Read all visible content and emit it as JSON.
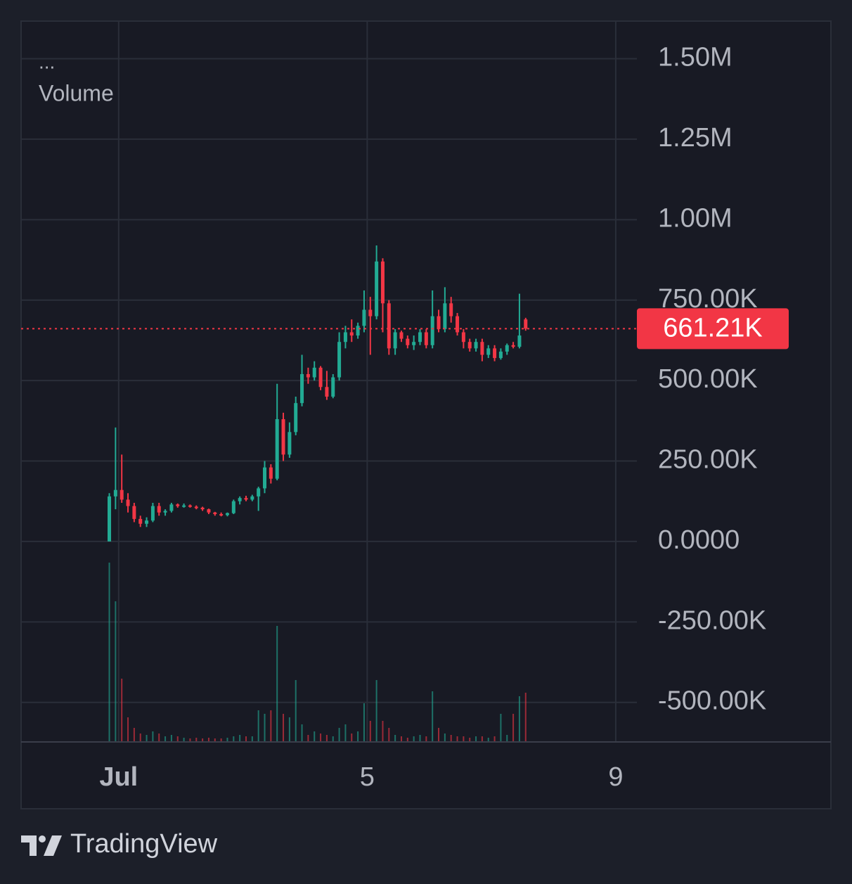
{
  "chart_data": {
    "type": "candlestick",
    "legend_menu": "...",
    "legend_label": "Volume",
    "brand": "TradingView",
    "up_color": "#22ab94",
    "down_color": "#f23645",
    "grid": true,
    "xlim": [
      -1.57,
      8.34
    ],
    "xticks": [
      {
        "value": 0,
        "label": "Jul"
      },
      {
        "value": 4,
        "label": "5"
      },
      {
        "value": 8,
        "label": "9"
      }
    ],
    "ylim": [
      -623000,
      1617000
    ],
    "yticks": [
      {
        "value": 1500000,
        "label": "1.50M"
      },
      {
        "value": 1250000,
        "label": "1.25M"
      },
      {
        "value": 1000000,
        "label": "1.00M"
      },
      {
        "value": 750000,
        "label": "750.00K"
      },
      {
        "value": 500000,
        "label": "500.00K"
      },
      {
        "value": 250000,
        "label": "250.00K"
      },
      {
        "value": 0,
        "label": "0.0000"
      },
      {
        "value": -250000,
        "label": "-250.00K"
      },
      {
        "value": -500000,
        "label": "-500.00K"
      }
    ],
    "last_price": {
      "value": 661210,
      "label": "661.21K"
    },
    "volume_ylim": [
      0,
      300
    ],
    "x": [
      -0.15,
      -0.05,
      0.05,
      0.15,
      0.25,
      0.35,
      0.45,
      0.55,
      0.65,
      0.75,
      0.85,
      0.95,
      1.05,
      1.15,
      1.25,
      1.35,
      1.45,
      1.55,
      1.65,
      1.75,
      1.85,
      1.95,
      2.05,
      2.15,
      2.25,
      2.35,
      2.45,
      2.55,
      2.65,
      2.75,
      2.85,
      2.95,
      3.05,
      3.15,
      3.25,
      3.35,
      3.45,
      3.55,
      3.65,
      3.75,
      3.85,
      3.95,
      4.05,
      4.15,
      4.25,
      4.35,
      4.45,
      4.55,
      4.65,
      4.75,
      4.85,
      4.95,
      5.05,
      5.15,
      5.25,
      5.35,
      5.45,
      5.55,
      5.65,
      5.75,
      5.85,
      5.95,
      6.05,
      6.15,
      6.25,
      6.35,
      6.45,
      6.55
    ],
    "open": [
      0,
      140000,
      160000,
      130000,
      110000,
      70000,
      55000,
      65000,
      110000,
      90000,
      95000,
      115000,
      110000,
      112000,
      108000,
      105000,
      100000,
      90000,
      85000,
      82000,
      88000,
      125000,
      135000,
      130000,
      140000,
      165000,
      230000,
      195000,
      380000,
      270000,
      340000,
      430000,
      520000,
      510000,
      540000,
      480000,
      450000,
      510000,
      620000,
      650000,
      640000,
      670000,
      720000,
      700000,
      870000,
      740000,
      600000,
      650000,
      630000,
      610000,
      620000,
      650000,
      610000,
      700000,
      660000,
      740000,
      700000,
      650000,
      620000,
      600000,
      620000,
      580000,
      600000,
      570000,
      590000,
      610000,
      605000,
      690000
    ],
    "high": [
      150000,
      354000,
      270000,
      150000,
      120000,
      80000,
      75000,
      120000,
      120000,
      100000,
      120000,
      118000,
      118000,
      115000,
      112000,
      108000,
      102000,
      92000,
      90000,
      90000,
      130000,
      140000,
      142000,
      145000,
      170000,
      250000,
      240000,
      490000,
      400000,
      370000,
      450000,
      580000,
      540000,
      560000,
      545000,
      530000,
      520000,
      650000,
      670000,
      690000,
      680000,
      780000,
      760000,
      920000,
      880000,
      750000,
      660000,
      655000,
      640000,
      640000,
      660000,
      660000,
      780000,
      720000,
      790000,
      760000,
      710000,
      660000,
      630000,
      630000,
      630000,
      610000,
      610000,
      600000,
      615000,
      620000,
      770000,
      695000
    ],
    "low": [
      0,
      100000,
      120000,
      90000,
      60000,
      45000,
      45000,
      60000,
      80000,
      80000,
      90000,
      105000,
      105000,
      105000,
      100000,
      95000,
      85000,
      80000,
      78000,
      78000,
      85000,
      115000,
      125000,
      125000,
      95000,
      150000,
      180000,
      190000,
      250000,
      260000,
      330000,
      420000,
      490000,
      500000,
      470000,
      440000,
      445000,
      500000,
      600000,
      620000,
      630000,
      650000,
      580000,
      690000,
      650000,
      580000,
      580000,
      620000,
      600000,
      595000,
      610000,
      600000,
      600000,
      650000,
      650000,
      680000,
      640000,
      600000,
      590000,
      590000,
      560000,
      570000,
      560000,
      565000,
      580000,
      600000,
      600000,
      655000
    ],
    "close": [
      140000,
      160000,
      130000,
      110000,
      70000,
      55000,
      65000,
      110000,
      90000,
      95000,
      115000,
      110000,
      112000,
      108000,
      105000,
      100000,
      90000,
      85000,
      82000,
      88000,
      125000,
      135000,
      130000,
      140000,
      165000,
      230000,
      195000,
      380000,
      270000,
      340000,
      430000,
      520000,
      510000,
      540000,
      480000,
      450000,
      510000,
      620000,
      650000,
      640000,
      670000,
      720000,
      700000,
      870000,
      740000,
      600000,
      650000,
      630000,
      610000,
      620000,
      650000,
      610000,
      700000,
      660000,
      740000,
      700000,
      650000,
      620000,
      600000,
      620000,
      580000,
      600000,
      570000,
      590000,
      610000,
      605000,
      640000,
      661210
    ],
    "volume": [
      255,
      200,
      90,
      35,
      20,
      12,
      10,
      15,
      12,
      8,
      10,
      8,
      6,
      5,
      6,
      5,
      6,
      5,
      5,
      6,
      8,
      10,
      8,
      8,
      45,
      40,
      45,
      165,
      40,
      35,
      88,
      25,
      10,
      15,
      12,
      10,
      8,
      20,
      25,
      12,
      15,
      55,
      30,
      88,
      30,
      20,
      10,
      8,
      6,
      8,
      10,
      8,
      72,
      20,
      12,
      10,
      8,
      8,
      6,
      8,
      8,
      6,
      8,
      40,
      10,
      40,
      65,
      70
    ]
  }
}
